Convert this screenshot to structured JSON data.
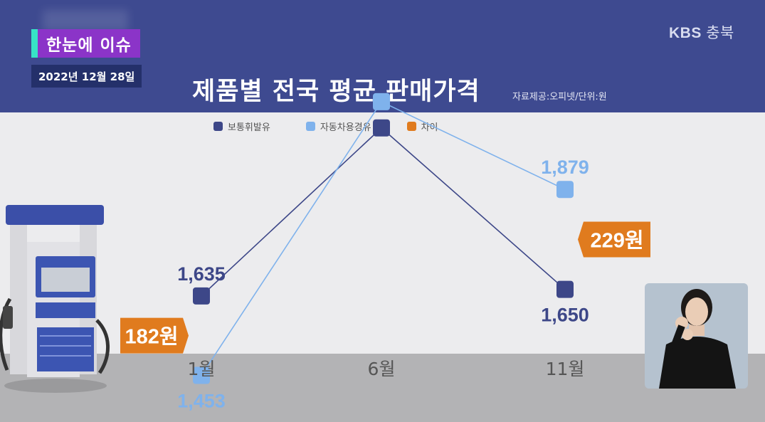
{
  "header": {
    "issue_badge": "한눈에 이슈",
    "date": "2022년 12월 28일",
    "logo_brand": "KBS",
    "logo_region": "충북",
    "title": "제품별 전국 평균 판매가격",
    "source": "자료제공:오피넷/단위:원"
  },
  "colors": {
    "gasoline": "#3d4788",
    "diesel": "#7fb2ec",
    "difference": "#e07b1e",
    "header_bg": "#3e4a90"
  },
  "chart_data": {
    "type": "line",
    "categories": [
      "1월",
      "6월",
      "11월"
    ],
    "series": [
      {
        "name": "보통휘발유",
        "values": [
          1635,
          2020,
          1650
        ],
        "value_labels": [
          "1,635",
          "",
          "1,650"
        ]
      },
      {
        "name": "자동차용경유",
        "values": [
          1453,
          2080,
          1879
        ],
        "value_labels": [
          "1,453",
          "",
          "1,879"
        ]
      }
    ],
    "legend": [
      "보통휘발유",
      "자동차용경유",
      "차이"
    ],
    "differences": [
      {
        "category": "1월",
        "label": "182원"
      },
      {
        "category": "11월",
        "label": "229원"
      }
    ],
    "ylim": [
      1400,
      2150
    ],
    "legend_position": "top"
  }
}
